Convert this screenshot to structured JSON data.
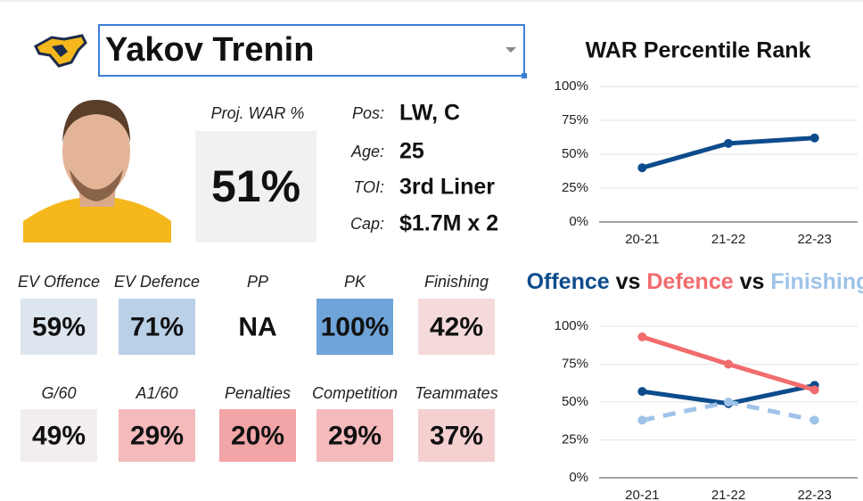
{
  "player": {
    "name": "Yakov Trenin",
    "proj_war_label": "Proj. WAR %",
    "proj_war": "51%",
    "info": [
      {
        "label": "Pos:",
        "value": "LW, C"
      },
      {
        "label": "Age:",
        "value": "25"
      },
      {
        "label": "TOI:",
        "value": "3rd Liner"
      },
      {
        "label": "Cap:",
        "value": "$1.7M x 2"
      }
    ]
  },
  "tiles": [
    {
      "label": "EV Offence",
      "value": "59%",
      "color": "#dde6ee"
    },
    {
      "label": "EV Defence",
      "value": "71%",
      "color": "#bad0e7"
    },
    {
      "label": "PP",
      "value": "NA",
      "color": "#ffffff"
    },
    {
      "label": "PK",
      "value": "100%",
      "color": "#6fa4d9"
    },
    {
      "label": "Finishing",
      "value": "42%",
      "color": "#f5dadb"
    },
    {
      "label": "G/60",
      "value": "49%",
      "color": "#f3eeee"
    },
    {
      "label": "A1/60",
      "value": "29%",
      "color": "#f4babc"
    },
    {
      "label": "Penalties",
      "value": "20%",
      "color": "#f2a4a6"
    },
    {
      "label": "Competition",
      "value": "29%",
      "color": "#f4babc"
    },
    {
      "label": "Teammates",
      "value": "37%",
      "color": "#f4d0d1"
    }
  ],
  "chart_data": [
    {
      "type": "line",
      "title": "WAR Percentile Rank",
      "categories": [
        "20-21",
        "21-22",
        "22-23"
      ],
      "series": [
        {
          "color": "#0d4c8c",
          "values": [
            40,
            58,
            62
          ]
        }
      ],
      "ylim": [
        0,
        100
      ],
      "yticks": [
        {
          "value": 0,
          "label": "0%"
        },
        {
          "value": 25,
          "label": "25%"
        },
        {
          "value": 50,
          "label": "50%"
        },
        {
          "value": 75,
          "label": "75%"
        },
        {
          "value": 100,
          "label": "100%"
        }
      ],
      "grid": true
    },
    {
      "type": "line",
      "title_joiner": "vs",
      "categories": [
        "20-21",
        "21-22",
        "22-23"
      ],
      "series": [
        {
          "name": "Offence",
          "color": "#0d4c8c",
          "values": [
            57,
            49,
            61
          ]
        },
        {
          "name": "Defence",
          "color": "#f26b6d",
          "values": [
            93,
            75,
            58
          ]
        },
        {
          "name": "Finishing",
          "color": "#9fc3e8",
          "values": [
            38,
            50,
            38
          ],
          "dashed": true
        }
      ],
      "ylim": [
        0,
        100
      ],
      "yticks": [
        {
          "value": 0,
          "label": "0%"
        },
        {
          "value": 25,
          "label": "25%"
        },
        {
          "value": 50,
          "label": "50%"
        },
        {
          "value": 75,
          "label": "75%"
        },
        {
          "value": 100,
          "label": "100%"
        }
      ],
      "grid": true
    }
  ]
}
